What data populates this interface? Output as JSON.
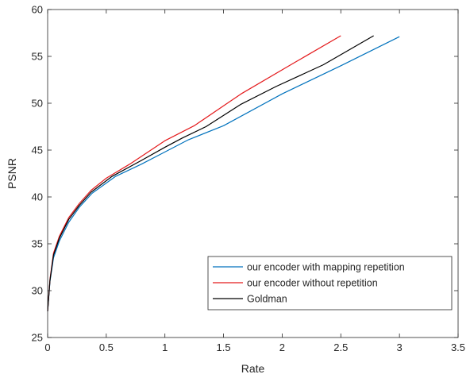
{
  "chart_data": {
    "type": "line",
    "title": "",
    "xlabel": "Rate",
    "ylabel": "PSNR",
    "xlim": [
      0,
      3.5
    ],
    "ylim": [
      25,
      60
    ],
    "xticks": [
      "0",
      "0.5",
      "1",
      "1.5",
      "2",
      "2.5",
      "3",
      "3.5"
    ],
    "yticks": [
      "25",
      "30",
      "35",
      "40",
      "45",
      "50",
      "55",
      "60"
    ],
    "grid": false,
    "legend_position": "bottom-right",
    "series": [
      {
        "name": "our encoder with mapping repetition",
        "color": "#0072BD",
        "x": [
          0,
          0.02,
          0.05,
          0.1,
          0.18,
          0.27,
          0.38,
          0.58,
          0.8,
          1.0,
          1.2,
          1.5,
          2.0,
          2.5,
          3.0
        ],
        "y": [
          27.8,
          31.0,
          33.5,
          35.3,
          37.3,
          38.9,
          40.4,
          42.2,
          43.5,
          44.8,
          46.1,
          47.6,
          51.0,
          54.0,
          57.1
        ]
      },
      {
        "name": "our encoder without repetition",
        "color": "#E41A1C",
        "x": [
          0,
          0.02,
          0.05,
          0.1,
          0.18,
          0.27,
          0.37,
          0.5,
          0.7,
          1.0,
          1.25,
          1.65,
          2.1,
          2.5
        ],
        "y": [
          27.8,
          31.2,
          34.0,
          35.8,
          37.8,
          39.3,
          40.7,
          42.0,
          43.5,
          46.0,
          47.6,
          51.0,
          54.3,
          57.2
        ]
      },
      {
        "name": "Goldman",
        "color": "#000000",
        "x": [
          0,
          0.02,
          0.05,
          0.1,
          0.18,
          0.27,
          0.37,
          0.55,
          0.8,
          1.0,
          1.15,
          1.35,
          1.65,
          1.95,
          2.35,
          2.78
        ],
        "y": [
          27.8,
          31.1,
          33.8,
          35.6,
          37.6,
          39.1,
          40.5,
          42.2,
          43.9,
          45.3,
          46.3,
          47.5,
          49.9,
          51.8,
          54.1,
          57.2
        ]
      }
    ]
  }
}
